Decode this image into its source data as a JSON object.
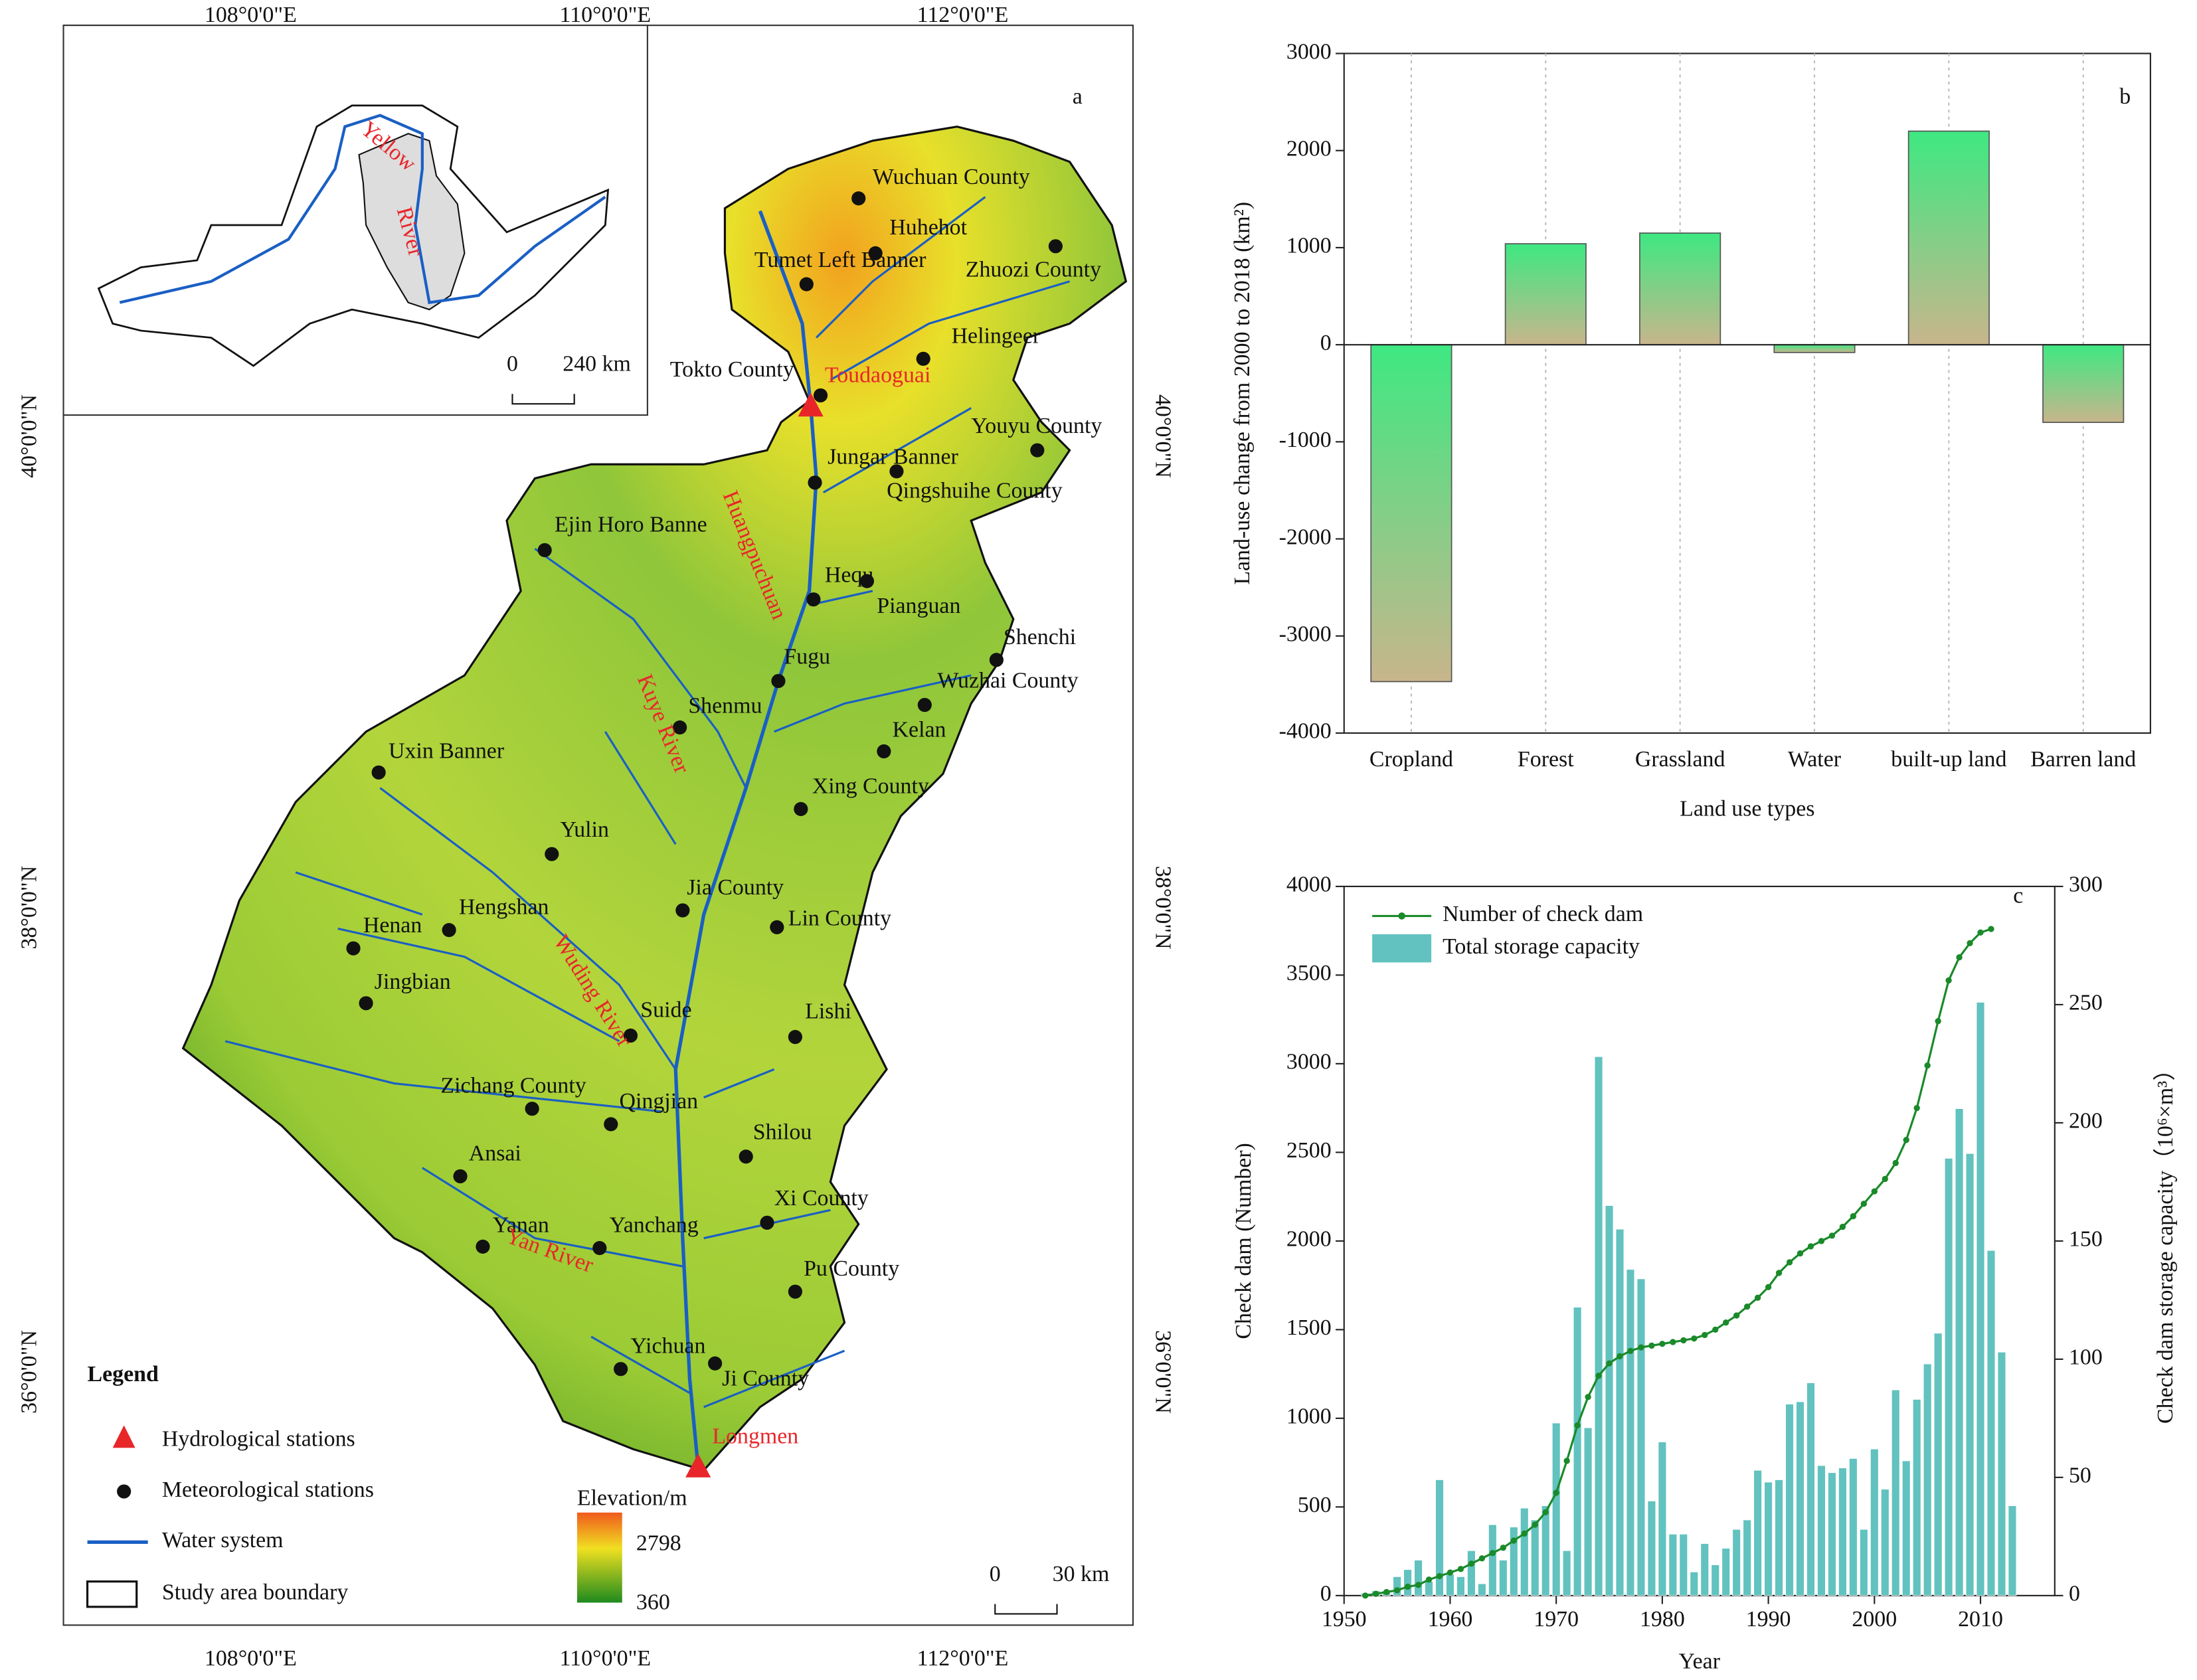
{
  "map": {
    "panel": "a",
    "lon_labels": [
      "108°0'0\"E",
      "110°0'0\"E",
      "112°0'0\"E"
    ],
    "lat_labels": [
      "40°0'0\"N",
      "38°0'0\"N",
      "36°0'0\"N"
    ],
    "stations": [
      "Wuchuan County",
      "Huhehot",
      "Tumet Left Banner",
      "Zhuozi County",
      "Helingeer",
      "Tokto County",
      "Youyu County",
      "Jungar Banner",
      "Qingshuihe County",
      "Ejin Horo Banne",
      "Hequ",
      "Pianguan",
      "Shenchi",
      "Fugu",
      "Wuzhai County",
      "Shenmu",
      "Kelan",
      "Uxin Banner",
      "Xing County",
      "Yulin",
      "Jia County",
      "Lin County",
      "Hengshan",
      "Henan",
      "Jingbian",
      "Suide",
      "Lishi",
      "Zichang County",
      "Qingjian",
      "Shilou",
      "Ansai",
      "Xi County",
      "Yanan",
      "Yanchang",
      "Pu County",
      "Yichuan",
      "Ji County"
    ],
    "hydro_stations": [
      "Toudaoguai",
      "Longmen"
    ],
    "rivers": [
      "Huangpuchuan",
      "Kuye River",
      "Wuding River",
      "Yan River"
    ],
    "inset_river": [
      "Yellow",
      "River"
    ],
    "legend": {
      "title": "Legend",
      "items": [
        "Hydrological stations",
        "Meteorological stations",
        "Water system",
        "Study area boundary"
      ]
    },
    "elevation": {
      "title": "Elevation/m",
      "max": "2798",
      "min": "360"
    },
    "scale": [
      "0",
      "30 km"
    ],
    "inset_scale": [
      "0",
      "240 km"
    ]
  },
  "chart_data": [
    {
      "type": "bar",
      "panel": "b",
      "ylabel": "Land-use change from 2000 to 2018 (km²)",
      "xlabel": "Land use types",
      "categories": [
        "Cropland",
        "Forest",
        "Grassland",
        "Water",
        "built-up land",
        "Barren land"
      ],
      "values": [
        -3470,
        1040,
        1150,
        -80,
        2200,
        -800
      ],
      "color_top": "#3ee882",
      "color_bottom": "#c8b58c",
      "ylim": [
        -4000,
        3000
      ],
      "yticks": [
        -4000,
        -3000,
        -2000,
        -1000,
        0,
        1000,
        2000,
        3000
      ],
      "grid": true
    },
    {
      "type": "combo",
      "panel": "c",
      "xlabel": "Year",
      "ylabel": "Check dam (Number)",
      "y2label": "Check dam storage capacity（10⁶×m³）",
      "legend": "upper left",
      "x": [
        1952,
        1953,
        1954,
        1955,
        1956,
        1957,
        1958,
        1959,
        1960,
        1961,
        1962,
        1963,
        1964,
        1965,
        1966,
        1967,
        1968,
        1969,
        1970,
        1971,
        1972,
        1973,
        1974,
        1975,
        1976,
        1977,
        1978,
        1979,
        1980,
        1981,
        1982,
        1983,
        1984,
        1985,
        1986,
        1987,
        1988,
        1989,
        1990,
        1991,
        1992,
        1993,
        1994,
        1995,
        1996,
        1997,
        1998,
        1999,
        2000,
        2001,
        2002,
        2003,
        2004,
        2005,
        2006,
        2007,
        2008,
        2009,
        2010,
        2011,
        2012,
        2013
      ],
      "series": [
        {
          "name": "Number of check dam",
          "kind": "line",
          "color": "#1a8a2a",
          "values": [
            0,
            10,
            20,
            30,
            50,
            60,
            90,
            110,
            130,
            150,
            180,
            210,
            240,
            270,
            310,
            350,
            400,
            470,
            580,
            760,
            960,
            1120,
            1240,
            1310,
            1350,
            1380,
            1400,
            1410,
            1420,
            1430,
            1440,
            1450,
            1470,
            1500,
            1540,
            1580,
            1630,
            1680,
            1740,
            1820,
            1880,
            1930,
            1970,
            2000,
            2030,
            2080,
            2140,
            2210,
            2280,
            2350,
            2440,
            2570,
            2750,
            2990,
            3240,
            3470,
            3600,
            3680,
            3740,
            3760,
            null,
            null
          ]
        },
        {
          "name": "Total storage capacity",
          "kind": "bar",
          "axis": "y2",
          "color": "#62c2bf",
          "values": [
            1,
            2,
            2,
            8,
            11,
            15,
            6,
            49,
            9,
            8,
            19,
            5,
            30,
            15,
            29,
            37,
            32,
            38,
            73,
            19,
            122,
            71,
            228,
            165,
            155,
            138,
            134,
            40,
            65,
            26,
            26,
            10,
            22,
            13,
            20,
            28,
            32,
            53,
            48,
            49,
            81,
            82,
            90,
            55,
            52,
            54,
            58,
            28,
            62,
            45,
            87,
            57,
            83,
            98,
            111,
            185,
            206,
            187,
            251,
            146,
            103,
            38
          ]
        }
      ],
      "xlim": [
        1950,
        2017
      ],
      "xticks": [
        1950,
        1960,
        1970,
        1980,
        1990,
        2000,
        2010
      ],
      "ylim": [
        0,
        4000
      ],
      "yticks": [
        0,
        500,
        1000,
        1500,
        2000,
        2500,
        3000,
        3500,
        4000
      ],
      "y2lim": [
        0,
        300
      ],
      "y2ticks": [
        0,
        50,
        100,
        150,
        200,
        250,
        300
      ]
    }
  ]
}
